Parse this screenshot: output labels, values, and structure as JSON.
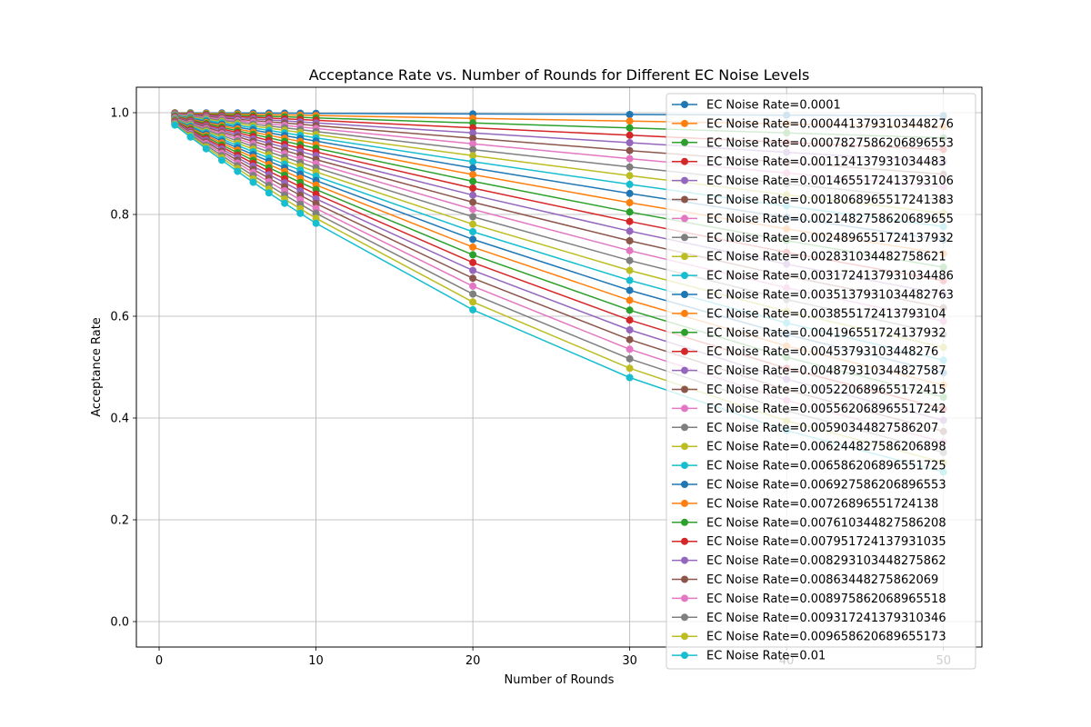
{
  "chart_data": {
    "type": "line",
    "title": "Acceptance Rate vs. Number of Rounds for Different EC Noise Levels",
    "xlabel": "Number of Rounds",
    "ylabel": "Acceptance Rate",
    "xlim": [
      -1.45,
      52.45
    ],
    "ylim": [
      -0.05,
      1.05
    ],
    "x_ticks": [
      0,
      10,
      20,
      30,
      40,
      50
    ],
    "y_ticks": [
      0.0,
      0.2,
      0.4,
      0.6,
      0.8,
      1.0
    ],
    "x_tick_labels": [
      "0",
      "10",
      "20",
      "30",
      "40",
      "50"
    ],
    "y_tick_labels": [
      "0.0",
      "0.2",
      "0.4",
      "0.6",
      "0.8",
      "1.0"
    ],
    "grid": true,
    "legend_position": "top-right",
    "marker": "circle",
    "colors": [
      "#1f77b4",
      "#ff7f0e",
      "#2ca02c",
      "#d62728",
      "#9467bd",
      "#8c564b",
      "#e377c2",
      "#7f7f7f",
      "#bcbd22",
      "#17becf"
    ],
    "x": [
      1,
      2,
      3,
      4,
      5,
      6,
      7,
      8,
      9,
      10,
      20,
      30,
      40,
      50
    ],
    "series": [
      {
        "name": "EC Noise Rate=0.0001",
        "noise": 0.0001
      },
      {
        "name": "EC Noise Rate=0.0004413793103448276",
        "noise": 0.0004413793103448276
      },
      {
        "name": "EC Noise Rate=0.0007827586206896553",
        "noise": 0.0007827586206896553
      },
      {
        "name": "EC Noise Rate=0.001124137931034483",
        "noise": 0.001124137931034483
      },
      {
        "name": "EC Noise Rate=0.0014655172413793106",
        "noise": 0.0014655172413793106
      },
      {
        "name": "EC Noise Rate=0.0018068965517241383",
        "noise": 0.0018068965517241383
      },
      {
        "name": "EC Noise Rate=0.0021482758620689655",
        "noise": 0.0021482758620689655
      },
      {
        "name": "EC Noise Rate=0.0024896551724137932",
        "noise": 0.0024896551724137932
      },
      {
        "name": "EC Noise Rate=0.002831034482758621",
        "noise": 0.002831034482758621
      },
      {
        "name": "EC Noise Rate=0.0031724137931034486",
        "noise": 0.0031724137931034486
      },
      {
        "name": "EC Noise Rate=0.0035137931034482763",
        "noise": 0.0035137931034482763
      },
      {
        "name": "EC Noise Rate=0.003855172413793104",
        "noise": 0.003855172413793104
      },
      {
        "name": "EC Noise Rate=0.004196551724137932",
        "noise": 0.004196551724137932
      },
      {
        "name": "EC Noise Rate=0.00453793103448276",
        "noise": 0.00453793103448276
      },
      {
        "name": "EC Noise Rate=0.004879310344827587",
        "noise": 0.004879310344827587
      },
      {
        "name": "EC Noise Rate=0.005220689655172415",
        "noise": 0.005220689655172415
      },
      {
        "name": "EC Noise Rate=0.005562068965517242",
        "noise": 0.005562068965517242
      },
      {
        "name": "EC Noise Rate=0.00590344827586207",
        "noise": 0.00590344827586207
      },
      {
        "name": "EC Noise Rate=0.006244827586206898",
        "noise": 0.006244827586206898
      },
      {
        "name": "EC Noise Rate=0.006586206896551725",
        "noise": 0.006586206896551725
      },
      {
        "name": "EC Noise Rate=0.006927586206896553",
        "noise": 0.006927586206896553
      },
      {
        "name": "EC Noise Rate=0.00726896551724138",
        "noise": 0.00726896551724138
      },
      {
        "name": "EC Noise Rate=0.007610344827586208",
        "noise": 0.007610344827586208
      },
      {
        "name": "EC Noise Rate=0.007951724137931035",
        "noise": 0.007951724137931035
      },
      {
        "name": "EC Noise Rate=0.008293103448275862",
        "noise": 0.008293103448275862
      },
      {
        "name": "EC Noise Rate=0.00863448275862069",
        "noise": 0.00863448275862069
      },
      {
        "name": "EC Noise Rate=0.008975862068965518",
        "noise": 0.008975862068965518
      },
      {
        "name": "EC Noise Rate=0.009317241379310346",
        "noise": 0.009317241379310346
      },
      {
        "name": "EC Noise Rate=0.009658620689655173",
        "noise": 0.009658620689655173
      },
      {
        "name": "EC Noise Rate=0.01",
        "noise": 0.01
      }
    ]
  }
}
